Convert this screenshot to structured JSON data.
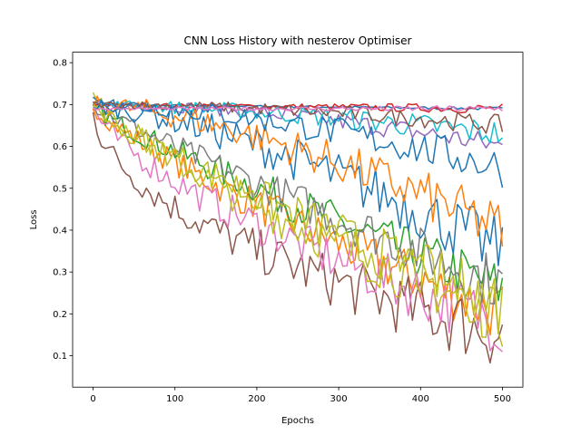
{
  "chart_data": {
    "type": "line",
    "title": "CNN Loss History with nesterov Optimiser",
    "xlabel": "Epochs",
    "ylabel": "Loss",
    "xlim": [
      -25,
      525
    ],
    "ylim": [
      0.025,
      0.825
    ],
    "xticks": [
      0,
      100,
      200,
      300,
      400,
      500
    ],
    "yticks": [
      0.1,
      0.2,
      0.3,
      0.4,
      0.5,
      0.6,
      0.7,
      0.8
    ],
    "xtick_labels": [
      "0",
      "100",
      "200",
      "300",
      "400",
      "500"
    ],
    "ytick_labels": [
      "0.1",
      "0.2",
      "0.3",
      "0.4",
      "0.5",
      "0.6",
      "0.7",
      "0.8"
    ],
    "grid": false,
    "legend": false,
    "x": {
      "start": 0,
      "end": 500,
      "step": 5
    },
    "series": [
      {
        "color": "#1f77b4",
        "start": 0.7,
        "end": 0.69,
        "noise": 0.004,
        "shape": 1.0
      },
      {
        "color": "#ff7f0e",
        "start": 0.7,
        "end": 0.2,
        "noise": 0.075,
        "shape": 0.8
      },
      {
        "color": "#2ca02c",
        "start": 0.69,
        "end": 0.26,
        "noise": 0.07,
        "shape": 0.9
      },
      {
        "color": "#d62728",
        "start": 0.7,
        "end": 0.69,
        "noise": 0.012,
        "shape": 1.0
      },
      {
        "color": "#9467bd",
        "start": 0.7,
        "end": 0.6,
        "noise": 0.03,
        "shape": 1.8
      },
      {
        "color": "#8c564b",
        "start": 0.7,
        "end": 0.15,
        "noise": 0.09,
        "shape": 0.5
      },
      {
        "color": "#e377c2",
        "start": 0.7,
        "end": 0.18,
        "noise": 0.08,
        "shape": 0.65
      },
      {
        "color": "#7f7f7f",
        "start": 0.7,
        "end": 0.27,
        "noise": 0.07,
        "shape": 0.9
      },
      {
        "color": "#bcbd22",
        "start": 0.72,
        "end": 0.2,
        "noise": 0.08,
        "shape": 0.75
      },
      {
        "color": "#17becf",
        "start": 0.7,
        "end": 0.63,
        "noise": 0.035,
        "shape": 1.5
      },
      {
        "color": "#1f77b4",
        "start": 0.7,
        "end": 0.35,
        "noise": 0.08,
        "shape": 1.4
      },
      {
        "color": "#ff7f0e",
        "start": 0.7,
        "end": 0.4,
        "noise": 0.07,
        "shape": 1.5
      },
      {
        "color": "#8c564b",
        "start": 0.7,
        "end": 0.65,
        "noise": 0.025,
        "shape": 1.8
      },
      {
        "color": "#bcbd22",
        "start": 0.7,
        "end": 0.22,
        "noise": 0.08,
        "shape": 0.85
      },
      {
        "color": "#1f77b4",
        "start": 0.7,
        "end": 0.55,
        "noise": 0.05,
        "shape": 1.6
      },
      {
        "color": "#e377c2",
        "start": 0.69,
        "end": 0.69,
        "noise": 0.008,
        "shape": 1.0
      }
    ]
  }
}
